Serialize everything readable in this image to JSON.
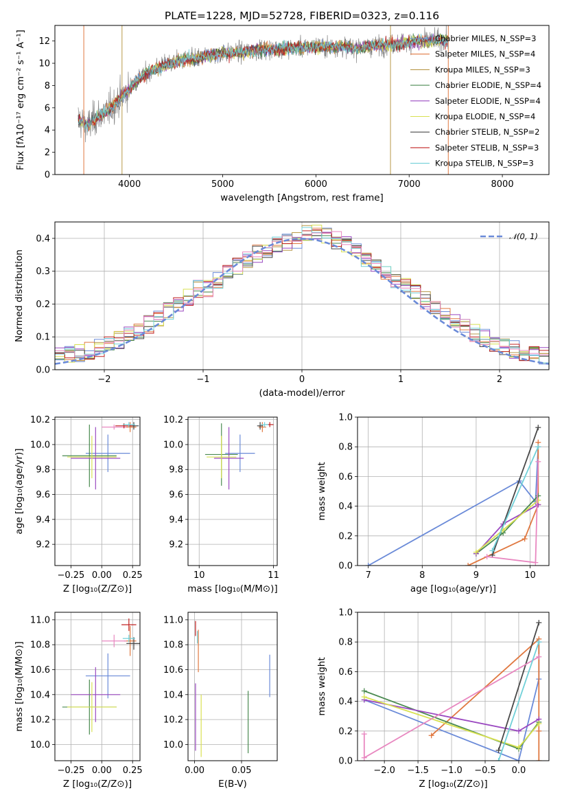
{
  "chart_data": [
    {
      "id": "spectrum",
      "type": "line",
      "title": "PLATE=1228, MJD=52728, FIBERID=0323, z=0.116",
      "xlabel": "wavelength [Angstrom, rest frame]",
      "ylabel": "Flux [fλ10⁻¹⁷ erg cm⁻² s⁻¹ A⁻¹]",
      "xlim": [
        3200,
        8500
      ],
      "ylim": [
        0,
        13.4
      ],
      "xticks": [
        4000,
        5000,
        6000,
        7000,
        8000
      ],
      "yticks": [
        0,
        2,
        4,
        6,
        8,
        10,
        12
      ],
      "grid": false,
      "legend_position": "top-right",
      "data_color": "#808080",
      "continuum": {
        "x": [
          3450,
          3550,
          3650,
          3750,
          3850,
          3950,
          4050,
          4150,
          4250,
          4400,
          4600,
          4800,
          5000,
          5200,
          5400,
          5600,
          5800,
          6000,
          6200,
          6400,
          6600,
          6800,
          7000,
          7200,
          7300
        ],
        "y": [
          5.0,
          4.3,
          5.2,
          5.6,
          6.4,
          7.3,
          8.2,
          8.9,
          9.4,
          9.9,
          10.3,
          10.6,
          10.9,
          11.0,
          11.2,
          11.3,
          11.4,
          11.5,
          11.5,
          11.4,
          11.5,
          11.7,
          11.9,
          12.0,
          12.1
        ]
      },
      "noise_amplitude": 1.3,
      "series": [
        {
          "name": "Chabrier MILES, N_SSP=3",
          "color": "#6a8ad8"
        },
        {
          "name": "Salpeter MILES, N_SSP=4",
          "color": "#e07840"
        },
        {
          "name": "Kroupa MILES, N_SSP=3",
          "color": "#b89848"
        },
        {
          "name": "Chabrier ELODIE, N_SSP=4",
          "color": "#4a8a50"
        },
        {
          "name": "Salpeter ELODIE, N_SSP=4",
          "color": "#9a48c0"
        },
        {
          "name": "Kroupa ELODIE, N_SSP=4",
          "color": "#d8e050"
        },
        {
          "name": "Chabrier STELIB, N_SSP=2",
          "color": "#484848"
        },
        {
          "name": "Salpeter STELIB, N_SSP=3",
          "color": "#c02020"
        },
        {
          "name": "Kroupa STELIB, N_SSP=3",
          "color": "#70d0d8"
        }
      ],
      "vertical_lines": [
        {
          "x": 3510,
          "color": "#e07840"
        },
        {
          "x": 3920,
          "color": "#b89848"
        },
        {
          "x": 6800,
          "color": "#b89848"
        },
        {
          "x": 7420,
          "color": "#e07840"
        }
      ]
    },
    {
      "id": "residuals",
      "type": "histogram",
      "xlabel": "(data-model)/error",
      "ylabel": "Normed distribution",
      "xlim": [
        -2.5,
        2.5
      ],
      "ylim": [
        0,
        0.45
      ],
      "xticks": [
        -2,
        -1,
        0,
        1,
        2
      ],
      "yticks": [
        0.0,
        0.1,
        0.2,
        0.3,
        0.4
      ],
      "grid": true,
      "bin_width": 0.1,
      "legend": "𝒩(0, 1)",
      "legend_position": "top-right",
      "gaussian_color": "#6a8ad8"
    },
    {
      "id": "age-vs-z",
      "type": "scatter",
      "xlabel": "Z [log₁₀(Z/Z⊙)]",
      "ylabel": "age  [log₁₀(age/yr)]",
      "xlim": [
        -0.38,
        0.31
      ],
      "ylim": [
        9.03,
        10.22
      ],
      "xticks": [
        -0.25,
        0.0,
        0.25
      ],
      "yticks": [
        9.2,
        9.4,
        9.6,
        9.8,
        10.0,
        10.2
      ],
      "grid": true,
      "points": [
        {
          "color": "#6a8ad8",
          "x": 0.05,
          "y": 9.93,
          "xerr": 0.18,
          "yerr": 0.15
        },
        {
          "color": "#4a8a50",
          "x": -0.1,
          "y": 9.91,
          "xerr": 0.22,
          "yerr": 0.25
        },
        {
          "color": "#9a48c0",
          "x": -0.05,
          "y": 9.89,
          "xerr": 0.2,
          "yerr": 0.25
        },
        {
          "color": "#d8e050",
          "x": -0.08,
          "y": 9.9,
          "xerr": 0.2,
          "yerr": 0.17
        },
        {
          "color": "#e07840",
          "x": 0.23,
          "y": 10.14,
          "xerr": 0.05,
          "yerr": 0.04
        },
        {
          "color": "#e887c0",
          "x": 0.1,
          "y": 10.14,
          "xerr": 0.1,
          "yerr": 0.02
        },
        {
          "color": "#484848",
          "x": 0.26,
          "y": 10.15,
          "xerr": 0.04,
          "yerr": 0.03
        },
        {
          "color": "#c02020",
          "x": 0.18,
          "y": 10.15,
          "xerr": 0.07,
          "yerr": 0.02
        },
        {
          "color": "#70d0d8",
          "x": 0.22,
          "y": 10.16,
          "xerr": 0.05,
          "yerr": 0.02
        }
      ]
    },
    {
      "id": "age-vs-mass",
      "type": "scatter",
      "xlabel": "mass [log₁₀(M/M⊙)]",
      "ylabel": "",
      "xlim": [
        9.85,
        11.05
      ],
      "ylim": [
        9.03,
        10.22
      ],
      "xticks": [
        10,
        11
      ],
      "yticks": [
        9.2,
        9.4,
        9.6,
        9.8,
        10.0,
        10.2
      ],
      "grid": true,
      "points": [
        {
          "color": "#6a8ad8",
          "x": 10.55,
          "y": 9.93,
          "xerr": 0.2,
          "yerr": 0.15
        },
        {
          "color": "#4a8a50",
          "x": 10.3,
          "y": 9.92,
          "xerr": 0.22,
          "yerr": 0.25
        },
        {
          "color": "#9a48c0",
          "x": 10.4,
          "y": 9.89,
          "xerr": 0.2,
          "yerr": 0.25
        },
        {
          "color": "#d8e050",
          "x": 10.3,
          "y": 9.9,
          "xerr": 0.2,
          "yerr": 0.17
        },
        {
          "color": "#e07840",
          "x": 10.85,
          "y": 10.14,
          "xerr": 0.05,
          "yerr": 0.04
        },
        {
          "color": "#484848",
          "x": 10.82,
          "y": 10.15,
          "xerr": 0.04,
          "yerr": 0.03
        },
        {
          "color": "#c02020",
          "x": 10.95,
          "y": 10.16,
          "xerr": 0.05,
          "yerr": 0.02
        },
        {
          "color": "#70d0d8",
          "x": 10.88,
          "y": 10.16,
          "xerr": 0.05,
          "yerr": 0.02
        }
      ]
    },
    {
      "id": "weight-vs-age",
      "type": "line",
      "xlabel": "age  [log₁₀(age/yr)]",
      "ylabel": "mass weight",
      "xlim": [
        6.8,
        10.35
      ],
      "ylim": [
        0,
        1.0
      ],
      "xticks": [
        7,
        8,
        9,
        10
      ],
      "yticks": [
        0.0,
        0.2,
        0.4,
        0.6,
        0.8,
        1.0
      ],
      "grid": true,
      "series": [
        {
          "color": "#6a8ad8",
          "x": [
            7.0,
            9.8,
            10.1,
            10.15
          ],
          "y": [
            0.0,
            0.57,
            0.43,
            0.8
          ]
        },
        {
          "color": "#e07840",
          "x": [
            8.85,
            9.9,
            10.15,
            10.15
          ],
          "y": [
            0.0,
            0.18,
            0.41,
            0.83
          ]
        },
        {
          "color": "#4a8a50",
          "x": [
            9.0,
            9.5,
            10.15
          ],
          "y": [
            0.08,
            0.22,
            0.47
          ]
        },
        {
          "color": "#9a48c0",
          "x": [
            9.0,
            9.5,
            10.15
          ],
          "y": [
            0.08,
            0.28,
            0.41
          ]
        },
        {
          "color": "#d8e050",
          "x": [
            9.0,
            9.5,
            10.15
          ],
          "y": [
            0.09,
            0.24,
            0.44
          ]
        },
        {
          "color": "#484848",
          "x": [
            9.3,
            10.15
          ],
          "y": [
            0.07,
            0.93
          ]
        },
        {
          "color": "#e887c0",
          "x": [
            9.2,
            10.1,
            10.15
          ],
          "y": [
            0.06,
            0.02,
            0.7
          ]
        },
        {
          "color": "#70d0d8",
          "x": [
            9.3,
            10.15
          ],
          "y": [
            0.1,
            0.8
          ]
        }
      ]
    },
    {
      "id": "mass-vs-z",
      "type": "scatter",
      "xlabel": "Z [log₁₀(Z/Z⊙)]",
      "ylabel": "mass [log₁₀(M/M⊙)]",
      "xlim": [
        -0.38,
        0.31
      ],
      "ylim": [
        9.87,
        11.06
      ],
      "xticks": [
        -0.25,
        0.0,
        0.25
      ],
      "yticks": [
        10.0,
        10.2,
        10.4,
        10.6,
        10.8,
        11.0
      ],
      "grid": true,
      "points": [
        {
          "color": "#6a8ad8",
          "x": 0.05,
          "y": 10.55,
          "xerr": 0.18,
          "yerr": 0.18
        },
        {
          "color": "#4a8a50",
          "x": -0.1,
          "y": 10.3,
          "xerr": 0.22,
          "yerr": 0.22
        },
        {
          "color": "#9a48c0",
          "x": -0.05,
          "y": 10.4,
          "xerr": 0.2,
          "yerr": 0.22
        },
        {
          "color": "#d8e050",
          "x": -0.08,
          "y": 10.3,
          "xerr": 0.2,
          "yerr": 0.2
        },
        {
          "color": "#e07840",
          "x": 0.23,
          "y": 10.83,
          "xerr": 0.05,
          "yerr": 0.12
        },
        {
          "color": "#e887c0",
          "x": 0.1,
          "y": 10.83,
          "xerr": 0.1,
          "yerr": 0.05
        },
        {
          "color": "#484848",
          "x": 0.26,
          "y": 10.81,
          "xerr": 0.06,
          "yerr": 0.05
        },
        {
          "color": "#c02020",
          "x": 0.22,
          "y": 10.96,
          "xerr": 0.06,
          "yerr": 0.05
        },
        {
          "color": "#70d0d8",
          "x": 0.22,
          "y": 10.85,
          "xerr": 0.05,
          "yerr": 0.03
        }
      ]
    },
    {
      "id": "mass-vs-ebv",
      "type": "scatter",
      "xlabel": "E(B-V)",
      "ylabel": "",
      "xlim": [
        -0.007,
        0.088
      ],
      "ylim": [
        9.87,
        11.06
      ],
      "xticks": [
        0.0,
        0.05
      ],
      "yticks": [
        10.0,
        10.2,
        10.4,
        10.6,
        10.8,
        11.0
      ],
      "grid": true,
      "points": [
        {
          "color": "#6a8ad8",
          "x": 0.08,
          "y": 10.55,
          "xerr": 0,
          "yerr": 0.17
        },
        {
          "color": "#4a8a50",
          "x": 0.057,
          "y": 10.18,
          "xerr": 0,
          "yerr": 0.25
        },
        {
          "color": "#9a48c0",
          "x": 0.001,
          "y": 10.22,
          "xerr": 0,
          "yerr": 0.27
        },
        {
          "color": "#d8e050",
          "x": 0.007,
          "y": 10.15,
          "xerr": 0,
          "yerr": 0.25
        },
        {
          "color": "#e07840",
          "x": 0.004,
          "y": 10.75,
          "xerr": 0,
          "yerr": 0.17
        },
        {
          "color": "#c02020",
          "x": 0.001,
          "y": 10.93,
          "xerr": 0,
          "yerr": 0.06
        },
        {
          "color": "#70d0d8",
          "x": 0.003,
          "y": 10.86,
          "xerr": 0,
          "yerr": 0.05
        }
      ]
    },
    {
      "id": "weight-vs-z",
      "type": "line",
      "xlabel": "Z [log₁₀(Z/Z⊙)]",
      "ylabel": "mass weight",
      "xlim": [
        -2.4,
        0.45
      ],
      "ylim": [
        0,
        1.0
      ],
      "xticks": [
        -2.0,
        -1.5,
        -1.0,
        -0.5,
        0.0
      ],
      "yticks": [
        0.0,
        0.2,
        0.4,
        0.6,
        0.8,
        1.0
      ],
      "grid": true,
      "series": [
        {
          "color": "#6a8ad8",
          "x": [
            -2.3,
            0.0,
            0.3,
            0.3
          ],
          "y": [
            0.41,
            0.0,
            0.55,
            0.8
          ]
        },
        {
          "color": "#e07840",
          "x": [
            -1.3,
            0.3,
            0.3,
            0.3
          ],
          "y": [
            0.17,
            0.82,
            0.0,
            0.2
          ]
        },
        {
          "color": "#4a8a50",
          "x": [
            -2.3,
            0.0,
            0.3
          ],
          "y": [
            0.47,
            0.08,
            0.26
          ]
        },
        {
          "color": "#9a48c0",
          "x": [
            -2.3,
            0.0,
            0.3
          ],
          "y": [
            0.41,
            0.2,
            0.28
          ]
        },
        {
          "color": "#d8e050",
          "x": [
            -2.3,
            0.0,
            0.3
          ],
          "y": [
            0.43,
            0.09,
            0.25
          ]
        },
        {
          "color": "#484848",
          "x": [
            -0.3,
            0.3
          ],
          "y": [
            0.07,
            0.93
          ]
        },
        {
          "color": "#e887c0",
          "x": [
            -2.3,
            -2.3,
            0.3
          ],
          "y": [
            0.18,
            0.02,
            0.7
          ]
        },
        {
          "color": "#70d0d8",
          "x": [
            -0.3,
            0.3
          ],
          "y": [
            0.0,
            0.8
          ]
        }
      ]
    }
  ]
}
